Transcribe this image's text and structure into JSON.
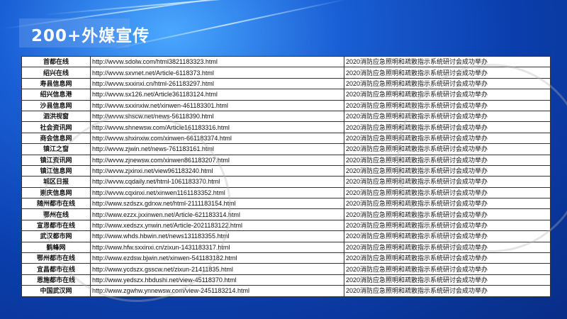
{
  "title": "200+外媒宣传",
  "event": "2020消防应急照明和疏散指示系统研讨会成功举办",
  "rows": [
    {
      "site": "首都在线",
      "url": "http://wvvw.sdolw.com/html3821183323.html"
    },
    {
      "site": "绍兴在线",
      "url": "http://wvvw.sxvnet.net/Article-6118373.html"
    },
    {
      "site": "寿县信息网",
      "url": "http://wvvw.sxxinxi.cn/html-261183297.html"
    },
    {
      "site": "绍兴信息港",
      "url": "http://wvvw.sx126.net/Article361183124.html"
    },
    {
      "site": "沙县信息网",
      "url": "http://wvvw.sxxinxiw.net/xinwen-461183301.html"
    },
    {
      "site": "泗洪视窗",
      "url": "http://wvvw.shscw.net/news-56118390.html"
    },
    {
      "site": "社会资讯网",
      "url": "http://wvvw.shnewsw.com/Article161183316.html"
    },
    {
      "site": "商会信息网",
      "url": "http://wvvw.shxinxiw.com/xinwen-661183374.html"
    },
    {
      "site": "镇江之窗",
      "url": "http://wvvw.zjwin.net/news-761183161.html"
    },
    {
      "site": "镇江资讯网",
      "url": "http://wvvw.zjnewsw.com/xinwen861183207.html"
    },
    {
      "site": "镇江信息网",
      "url": "http://wvvw.zjxinxi.net/view961183240.html"
    },
    {
      "site": "城区日报",
      "url": "http://wvvw.cqdaily.net/html-1061183370.html"
    },
    {
      "site": "崇庆信息网",
      "url": "http://wvvw.cqxinxi.net/xinwen1161183352.html"
    },
    {
      "site": "随州都市在线",
      "url": "http://www.szdszx.gdrxw.net/html-2111183154.html"
    },
    {
      "site": "鄂州在线",
      "url": "http://www.ezzx.jxxinwen.net/Article-621183314.html"
    },
    {
      "site": "宣恩都市在线",
      "url": "http://www.xedszx.ynwin.net/Article-2021183122.html"
    },
    {
      "site": "武汉都市网",
      "url": "http://www.whds.hbwin.net/news131183355.html"
    },
    {
      "site": "鹤峰网",
      "url": "http://www.hfw.sxxinxi.cn/zixun-1431183317.html"
    },
    {
      "site": "鄂州都市在线",
      "url": "http://www.ezdsw.bjwin.net/xinwen-541183182.html"
    },
    {
      "site": "宜昌都市在线",
      "url": "http://www.ycdszx.gsscw.net/zixun-21411835.html"
    },
    {
      "site": "恩施都市在线",
      "url": "http://www.yedszx.hbdushi.net/view-45118370.html"
    },
    {
      "site": "中国武汉网",
      "url": "http://www.zgwhw.ynnewsw.com/view-2451183214.html"
    }
  ]
}
